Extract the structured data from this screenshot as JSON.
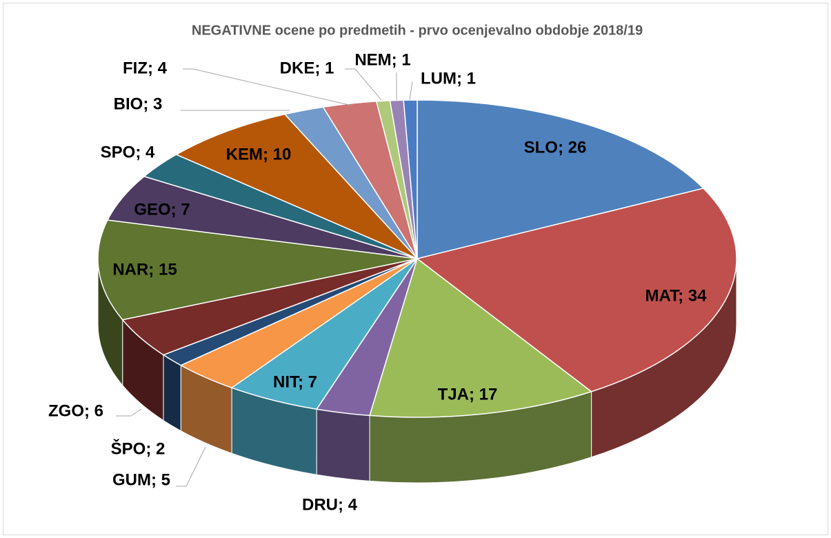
{
  "chart_data": {
    "type": "pie3d",
    "title": "NEGATIVNE ocene po predmetih - prvo ocenjevalno obdobje 2018/19",
    "categories": [
      "SLO",
      "MAT",
      "TJA",
      "DRU",
      "NIT",
      "GUM",
      "ŠPO",
      "ZGO",
      "NAR",
      "GEO",
      "SPO",
      "KEM",
      "BIO",
      "FIZ",
      "DKE",
      "NEM",
      "LUM"
    ],
    "values": [
      26,
      34,
      17,
      4,
      7,
      5,
      2,
      6,
      15,
      7,
      4,
      10,
      3,
      4,
      1,
      1,
      1
    ],
    "value_labels": [
      "SLO; 26",
      "MAT; 34",
      "TJA; 17",
      "DRU; 4",
      "NIT; 7",
      "GUM; 5",
      "ŠPO; 2",
      "ZGO; 6",
      "NAR; 15",
      "GEO; 7",
      "SPO; 4",
      "KEM; 10",
      "BIO; 3",
      "FIZ; 4",
      "DKE; 1",
      "NEM; 1",
      "LUM; 1"
    ],
    "colors": [
      "#4f81bd",
      "#c0504d",
      "#9bbb59",
      "#8064a2",
      "#4bacc6",
      "#f79646",
      "#254a75",
      "#772c2a",
      "#5f7530",
      "#4d3b62",
      "#276a7c",
      "#b65708",
      "#729aca",
      "#cd7371",
      "#afc97a",
      "#9983b5",
      "#4a7cc4"
    ]
  }
}
